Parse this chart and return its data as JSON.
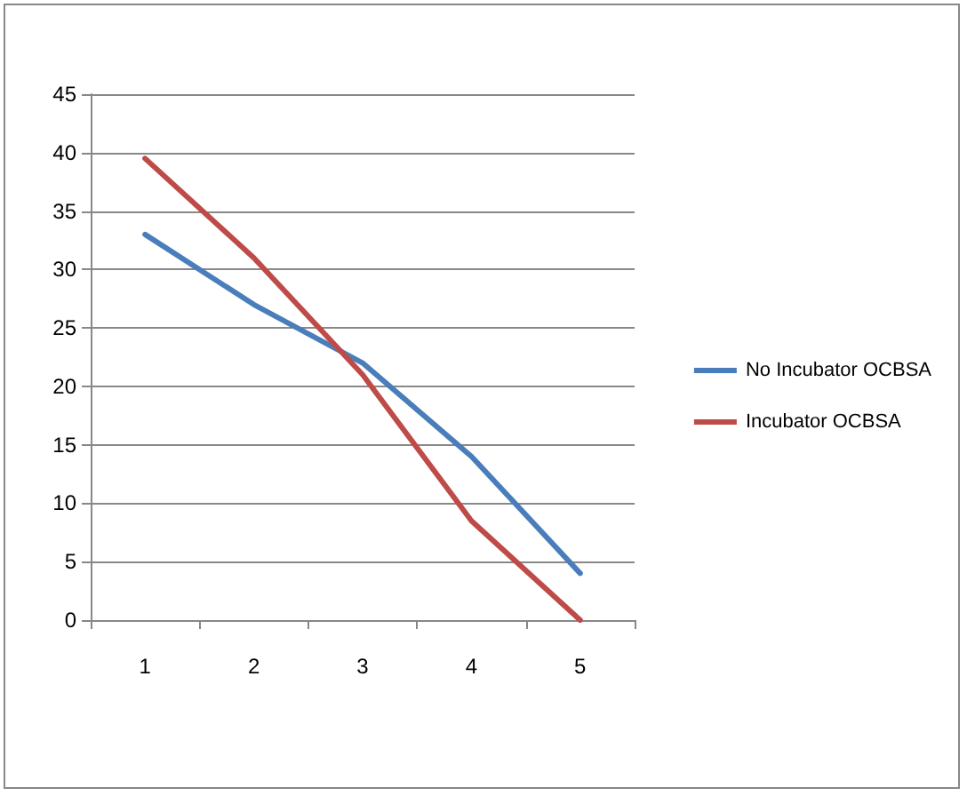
{
  "chart_data": {
    "type": "line",
    "categories": [
      "1",
      "2",
      "3",
      "4",
      "5"
    ],
    "series": [
      {
        "name": "No Incubator OCBSA",
        "color": "#4a7ebb",
        "values": [
          33,
          27,
          22,
          14,
          4
        ]
      },
      {
        "name": "Incubator OCBSA",
        "color": "#be4b48",
        "values": [
          39.5,
          31,
          21,
          8.5,
          0
        ]
      }
    ],
    "ylim": [
      0,
      45
    ],
    "yticks": [
      0,
      5,
      10,
      15,
      20,
      25,
      30,
      35,
      40,
      45
    ],
    "grid": "y",
    "legend": "right",
    "marker": "none",
    "line_style": "solid"
  }
}
